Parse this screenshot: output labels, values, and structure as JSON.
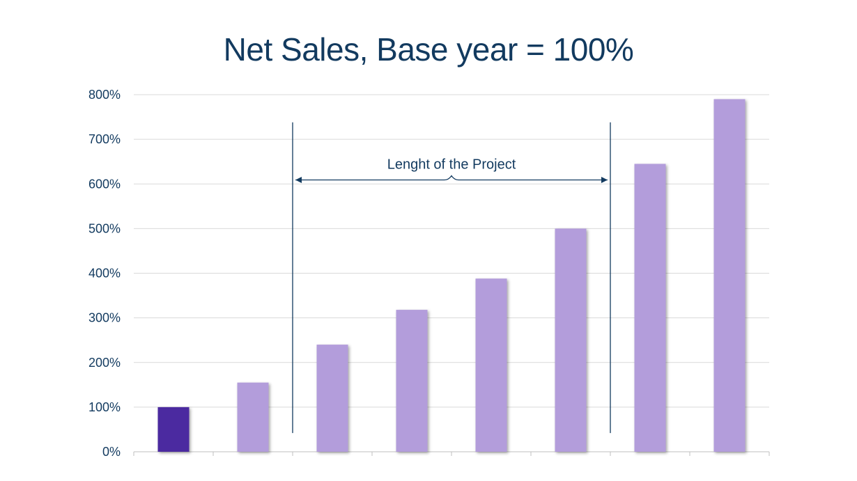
{
  "chart_data": {
    "type": "bar",
    "title": "Net Sales, Base year = 100%",
    "xlabel": "",
    "ylabel": "",
    "ylim": [
      0,
      800
    ],
    "ytick_labels": [
      "0%",
      "100%",
      "200%",
      "300%",
      "400%",
      "500%",
      "600%",
      "700%",
      "800%"
    ],
    "yticks": [
      0,
      100,
      200,
      300,
      400,
      500,
      600,
      700,
      800
    ],
    "categories": [
      "",
      "",
      "",
      "",
      "",
      "",
      "",
      ""
    ],
    "values": [
      100,
      155,
      240,
      318,
      388,
      500,
      645,
      790
    ],
    "grid": true,
    "legend": "none",
    "annotation": {
      "label": "Lenght of the Project",
      "from_category": 1,
      "to_category": 5
    },
    "colors": {
      "base_bar": "#4b2aa0",
      "bar": "#b39ddb",
      "text": "#123a5f",
      "grid": "#d9d9d9"
    }
  }
}
